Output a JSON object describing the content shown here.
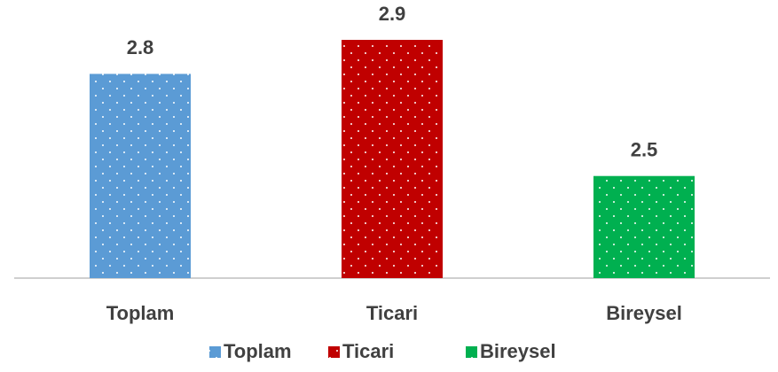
{
  "chart_data": {
    "type": "bar",
    "categories": [
      "Toplam",
      "Ticari",
      "Bireysel"
    ],
    "series": [
      {
        "name": "Toplam",
        "color": "#5b9bd5",
        "values": [
          2.8,
          null,
          null
        ]
      },
      {
        "name": "Ticari",
        "color": "#c00000",
        "values": [
          null,
          2.9,
          null
        ]
      },
      {
        "name": "Bireysel",
        "color": "#00b050",
        "values": [
          null,
          null,
          2.5
        ]
      }
    ],
    "ylim": [
      2.2,
      3.0
    ],
    "legend": "bottom"
  }
}
